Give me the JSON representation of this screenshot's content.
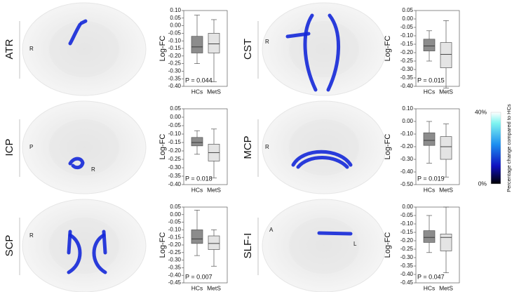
{
  "chart_data": [
    {
      "type": "box",
      "title": "ATR",
      "orientation_labels": [
        "R"
      ],
      "y_label": "Log-FC",
      "annotation": "P = 0.044",
      "categories": [
        "HCs",
        "MetS"
      ],
      "boxes": [
        {
          "color": "#8c8c8c",
          "whislo": -0.25,
          "q1": -0.18,
          "median": -0.14,
          "q3": -0.07,
          "whishi": 0.07
        },
        {
          "color": "#e4e4e4",
          "whislo": -0.37,
          "q1": -0.18,
          "median": -0.12,
          "q3": -0.05,
          "whishi": 0.04
        }
      ],
      "ylim": [
        -0.4,
        0.1
      ],
      "yticks": [
        {
          "value": 0.1,
          "label": "0.10"
        },
        {
          "value": 0.05,
          "label": "0.05"
        },
        {
          "value": 0,
          "label": "0.00"
        },
        {
          "value": -0.05,
          "label": "-0.05"
        },
        {
          "value": -0.1,
          "label": "-0.10"
        },
        {
          "value": -0.15,
          "label": "-0.15"
        },
        {
          "value": -0.2,
          "label": "-0.20"
        },
        {
          "value": -0.25,
          "label": "-0.25"
        },
        {
          "value": -0.3,
          "label": "-0.30"
        },
        {
          "value": -0.35,
          "label": "-0.35"
        },
        {
          "value": -0.4,
          "label": "-0.40"
        }
      ]
    },
    {
      "type": "box",
      "title": "CST",
      "orientation_labels": [
        "R"
      ],
      "y_label": "Log-FC",
      "annotation": "P = 0.015",
      "categories": [
        "HCs",
        "MetS"
      ],
      "boxes": [
        {
          "color": "#8c8c8c",
          "whislo": -0.25,
          "q1": -0.19,
          "median": -0.16,
          "q3": -0.12,
          "whishi": -0.07
        },
        {
          "color": "#e4e4e4",
          "whislo": -0.41,
          "q1": -0.29,
          "median": -0.21,
          "q3": -0.14,
          "whishi": -0.01
        }
      ],
      "ylim": [
        -0.4,
        0.05
      ],
      "yticks": [
        {
          "value": 0.05,
          "label": "0.05"
        },
        {
          "value": 0,
          "label": "0.00"
        },
        {
          "value": -0.05,
          "label": "-0.05"
        },
        {
          "value": -0.1,
          "label": "-0.10"
        },
        {
          "value": -0.15,
          "label": "-0.15"
        },
        {
          "value": -0.2,
          "label": "-0.20"
        },
        {
          "value": -0.25,
          "label": "-0.25"
        },
        {
          "value": -0.3,
          "label": "-0.30"
        },
        {
          "value": -0.35,
          "label": "-0.35"
        },
        {
          "value": -0.4,
          "label": "-0.40"
        }
      ]
    },
    {
      "type": "box",
      "title": "ICP",
      "orientation_labels": [
        "P",
        "R"
      ],
      "y_label": "Log-FC",
      "annotation": "P = 0.018",
      "categories": [
        "HCs",
        "MetS"
      ],
      "boxes": [
        {
          "color": "#8c8c8c",
          "whislo": -0.22,
          "q1": -0.17,
          "median": -0.15,
          "q3": -0.12,
          "whishi": -0.08
        },
        {
          "color": "#e4e4e4",
          "whislo": -0.36,
          "q1": -0.26,
          "median": -0.21,
          "q3": -0.16,
          "whishi": -0.07
        }
      ],
      "ylim": [
        -0.4,
        0.05
      ],
      "yticks": [
        {
          "value": 0.05,
          "label": "0.05"
        },
        {
          "value": 0,
          "label": "0.00"
        },
        {
          "value": -0.05,
          "label": "-0.05"
        },
        {
          "value": -0.1,
          "label": "-0.10"
        },
        {
          "value": -0.15,
          "label": "-0.15"
        },
        {
          "value": -0.2,
          "label": "-0.20"
        },
        {
          "value": -0.25,
          "label": "-0.25"
        },
        {
          "value": -0.3,
          "label": "-0.30"
        },
        {
          "value": -0.35,
          "label": "-0.35"
        },
        {
          "value": -0.4,
          "label": "-0.40"
        }
      ]
    },
    {
      "type": "box",
      "title": "MCP",
      "orientation_labels": [
        "R"
      ],
      "y_label": "Log-FC",
      "annotation": "P = 0.019",
      "categories": [
        "HCs",
        "MetS"
      ],
      "boxes": [
        {
          "color": "#8c8c8c",
          "whislo": -0.33,
          "q1": -0.19,
          "median": -0.15,
          "q3": -0.09,
          "whishi": 0
        },
        {
          "color": "#e4e4e4",
          "whislo": -0.44,
          "q1": -0.3,
          "median": -0.2,
          "q3": -0.12,
          "whishi": -0.02
        }
      ],
      "ylim": [
        -0.5,
        0.1
      ],
      "yticks": [
        {
          "value": 0.1,
          "label": "0.10"
        },
        {
          "value": 0,
          "label": "0.00"
        },
        {
          "value": -0.1,
          "label": "-0.10"
        },
        {
          "value": -0.2,
          "label": "-0.20"
        },
        {
          "value": -0.3,
          "label": "-0.30"
        },
        {
          "value": -0.4,
          "label": "-0.40"
        },
        {
          "value": -0.5,
          "label": "-0.50"
        }
      ]
    },
    {
      "type": "box",
      "title": "SCP",
      "orientation_labels": [
        "R"
      ],
      "y_label": "Log-FC",
      "annotation": "P = 0.007",
      "categories": [
        "HCs",
        "MetS"
      ],
      "boxes": [
        {
          "color": "#8c8c8c",
          "whislo": -0.27,
          "q1": -0.19,
          "median": -0.16,
          "q3": -0.1,
          "whishi": 0.03
        },
        {
          "color": "#e4e4e4",
          "whislo": -0.34,
          "q1": -0.23,
          "median": -0.19,
          "q3": -0.14,
          "whishi": -0.1
        }
      ],
      "ylim": [
        -0.45,
        0.05
      ],
      "yticks": [
        {
          "value": 0.05,
          "label": "0.05"
        },
        {
          "value": 0,
          "label": "0.00"
        },
        {
          "value": -0.05,
          "label": "-0.05"
        },
        {
          "value": -0.1,
          "label": "-0.10"
        },
        {
          "value": -0.15,
          "label": "-0.15"
        },
        {
          "value": -0.2,
          "label": "-0.20"
        },
        {
          "value": -0.25,
          "label": "-0.25"
        },
        {
          "value": -0.3,
          "label": "-0.30"
        },
        {
          "value": -0.35,
          "label": "-0.35"
        },
        {
          "value": -0.4,
          "label": "-0.40"
        },
        {
          "value": -0.45,
          "label": "-0.45"
        }
      ]
    },
    {
      "type": "box",
      "title": "SLF-I",
      "orientation_labels": [
        "A",
        "L"
      ],
      "y_label": "Log-FC",
      "annotation": "P = 0.047",
      "categories": [
        "HCs",
        "MetS"
      ],
      "boxes": [
        {
          "color": "#8c8c8c",
          "whislo": -0.27,
          "q1": -0.21,
          "median": -0.18,
          "q3": -0.14,
          "whishi": -0.05
        },
        {
          "color": "#e4e4e4",
          "whislo": -0.39,
          "q1": -0.26,
          "median": -0.18,
          "q3": -0.16,
          "whishi": 0
        }
      ],
      "ylim": [
        -0.45,
        0
      ],
      "yticks": [
        {
          "value": 0,
          "label": "0.00"
        },
        {
          "value": -0.05,
          "label": "-0.05"
        },
        {
          "value": -0.1,
          "label": "-0.10"
        },
        {
          "value": -0.15,
          "label": "-0.15"
        },
        {
          "value": -0.2,
          "label": "-0.20"
        },
        {
          "value": -0.25,
          "label": "-0.25"
        },
        {
          "value": -0.3,
          "label": "-0.30"
        },
        {
          "value": -0.35,
          "label": "-0.35"
        },
        {
          "value": -0.4,
          "label": "-0.40"
        },
        {
          "value": -0.45,
          "label": "-0.45"
        }
      ]
    }
  ],
  "colorbar": {
    "label": "Percentage change compared to HCs",
    "max_label": "40%",
    "min_label": "0%"
  }
}
